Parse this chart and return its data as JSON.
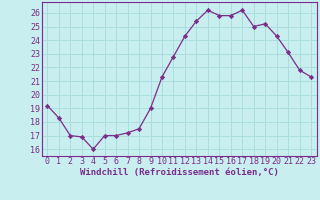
{
  "x": [
    0,
    1,
    2,
    3,
    4,
    5,
    6,
    7,
    8,
    9,
    10,
    11,
    12,
    13,
    14,
    15,
    16,
    17,
    18,
    19,
    20,
    21,
    22,
    23
  ],
  "y": [
    19.2,
    18.3,
    17.0,
    16.9,
    16.0,
    17.0,
    17.0,
    17.2,
    17.5,
    19.0,
    21.3,
    22.8,
    24.3,
    25.4,
    26.2,
    25.8,
    25.8,
    26.2,
    25.0,
    25.2,
    24.3,
    23.1,
    21.8,
    21.3
  ],
  "line_color": "#7b2d8b",
  "marker": "D",
  "marker_size": 2.2,
  "bg_color": "#c8eef0",
  "grid_color": "#aadddd",
  "xlabel": "Windchill (Refroidissement éolien,°C)",
  "xlabel_fontsize": 6.5,
  "tick_fontsize": 6.0,
  "ylim": [
    15.5,
    26.8
  ],
  "yticks": [
    16,
    17,
    18,
    19,
    20,
    21,
    22,
    23,
    24,
    25,
    26
  ],
  "xlim": [
    -0.5,
    23.5
  ],
  "xticks": [
    0,
    1,
    2,
    3,
    4,
    5,
    6,
    7,
    8,
    9,
    10,
    11,
    12,
    13,
    14,
    15,
    16,
    17,
    18,
    19,
    20,
    21,
    22,
    23
  ]
}
